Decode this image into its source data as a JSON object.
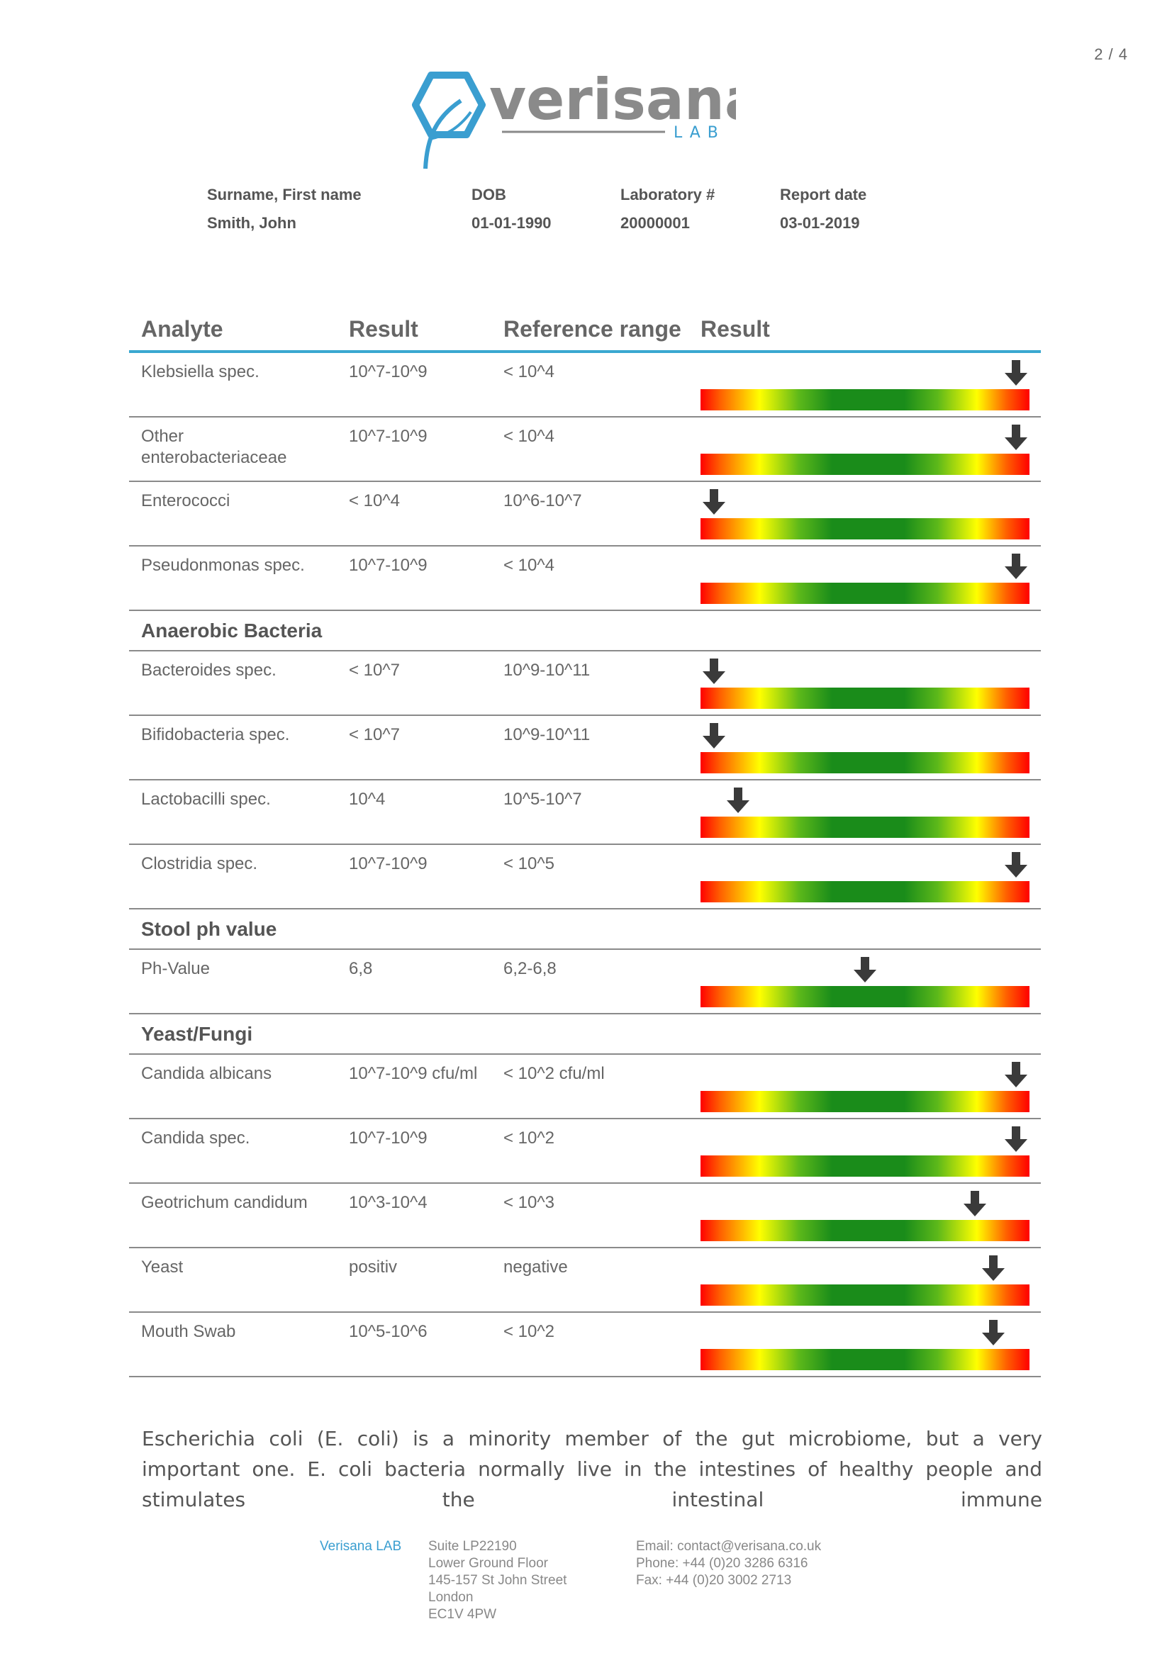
{
  "page": {
    "number": "2 / 4"
  },
  "logo": {
    "name": "verisana",
    "sub": "LAB"
  },
  "patient": {
    "labels": {
      "name": "Surname, First name",
      "dob": "DOB",
      "lab": "Laboratory #",
      "report": "Report date"
    },
    "values": {
      "name": "Smith, John",
      "dob": "01-01-1990",
      "lab": "20000001",
      "report": "03-01-2019"
    }
  },
  "table": {
    "headers": {
      "analyte": "Analyte",
      "result": "Result",
      "reference": "Reference range",
      "graph": "Result"
    },
    "rows": [
      {
        "type": "row",
        "analyte": "Klebsiella spec.",
        "result": "10^7-10^9",
        "reference": "< 10^4",
        "level": 0.96
      },
      {
        "type": "row",
        "analyte": "Other enterobacteriaceae",
        "result": "10^7-10^9",
        "reference": "< 10^4",
        "level": 0.96
      },
      {
        "type": "row",
        "analyte": "Enterococci",
        "result": "< 10^4",
        "reference": "10^6-10^7",
        "level": 0.04
      },
      {
        "type": "row",
        "analyte": "Pseudonmonas spec.",
        "result": "10^7-10^9",
        "reference": "< 10^4",
        "level": 0.96
      },
      {
        "type": "section",
        "title": "Anaerobic Bacteria"
      },
      {
        "type": "row",
        "analyte": "Bacteroides spec.",
        "result": "< 10^7",
        "reference": "10^9-10^11",
        "level": 0.04
      },
      {
        "type": "row",
        "analyte": "Bifidobacteria spec.",
        "result": "< 10^7",
        "reference": "10^9-10^11",
        "level": 0.04
      },
      {
        "type": "row",
        "analyte": "Lactobacilli spec.",
        "result": "10^4",
        "reference": "10^5-10^7",
        "level": 0.115
      },
      {
        "type": "row",
        "analyte": "Clostridia spec.",
        "result": "10^7-10^9",
        "reference": "< 10^5",
        "level": 0.96
      },
      {
        "type": "section",
        "title": "Stool ph value"
      },
      {
        "type": "row",
        "analyte": "Ph-Value",
        "result": "6,8",
        "reference": "6,2-6,8",
        "level": 0.5
      },
      {
        "type": "section",
        "title": "Yeast/Fungi"
      },
      {
        "type": "row",
        "analyte": "Candida albicans",
        "result": "10^7-10^9 cfu/ml",
        "reference": "< 10^2 cfu/ml",
        "level": 0.96
      },
      {
        "type": "row",
        "analyte": "Candida spec.",
        "result": "10^7-10^9",
        "reference": "< 10^2",
        "level": 0.96
      },
      {
        "type": "row",
        "analyte": "Geotrichum candidum",
        "result": "10^3-10^4",
        "reference": "< 10^3",
        "level": 0.835
      },
      {
        "type": "row",
        "analyte": "Yeast",
        "result": "positiv",
        "reference": "negative",
        "level": 0.89
      },
      {
        "type": "row",
        "analyte": "Mouth Swab",
        "result": "10^5-10^6",
        "reference": "< 10^2",
        "level": 0.89
      }
    ]
  },
  "paragraph": "Escherichia coli (E. coli) is a minority member of the gut microbiome, but a very important one. E. coli bacteria normally live in the intestines of healthy people and stimulates the intestinal immune",
  "footer": {
    "brand": "Verisana LAB",
    "address": [
      "Suite LP22190",
      "Lower Ground Floor",
      "145-157 St John Street",
      "London",
      "EC1V 4PW"
    ],
    "contact": [
      "Email: contact@verisana.co.uk",
      "Phone: +44 (0)20 3286 6316",
      "Fax: +44 (0)20 3002 2713"
    ]
  },
  "colors": {
    "accent": "#3aa8d0",
    "arrow": "#3a3a3a"
  }
}
